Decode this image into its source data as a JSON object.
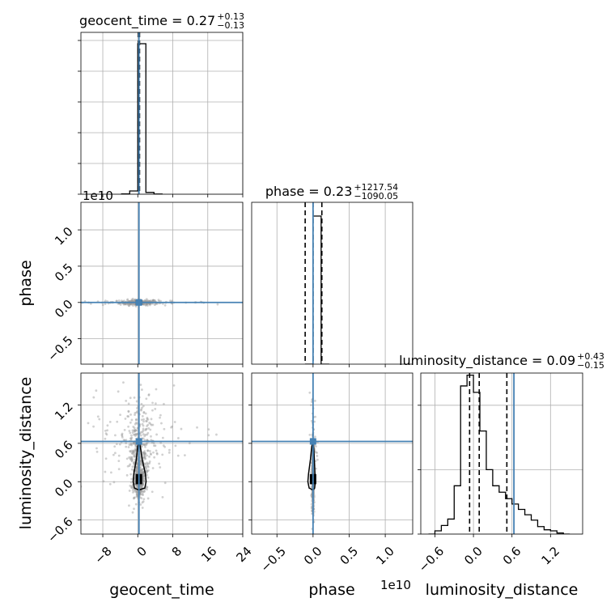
{
  "chart_data": {
    "type": "corner",
    "parameters": [
      "geocent_time",
      "phase",
      "luminosity_distance"
    ],
    "truths": {
      "geocent_time": 0.27,
      "phase": 0.23,
      "luminosity_distance": 0.63
    },
    "ranges": {
      "geocent_time": [
        -13,
        24
      ],
      "phase": [
        -8500000000.0,
        13800000000.0
      ],
      "luminosity_distance": [
        -0.82,
        1.7
      ]
    },
    "ticks": {
      "geocent_time": {
        "values": [
          -8,
          0,
          8,
          16,
          24
        ],
        "labels": [
          "−8",
          "0",
          "8",
          "16",
          "24"
        ]
      },
      "phase": {
        "values": [
          -5000000000.0,
          0,
          5000000000.0,
          10000000000.0
        ],
        "labels": [
          "−0.5",
          "0.0",
          "0.5",
          "1.0"
        ]
      },
      "phase_x": {
        "values": [
          -5000000000.0,
          0,
          5000000000.0,
          10000000000.0
        ],
        "labels": [
          "−0.5",
          "0.0",
          "0.5",
          "1.0"
        ]
      },
      "luminosity_distance": {
        "values": [
          -0.6,
          0,
          0.6,
          1.2
        ],
        "labels": [
          "−0.6",
          "0.0",
          "0.6",
          "1.2"
        ]
      }
    },
    "offset_label": "1e10",
    "titles": [
      {
        "name": "geocent_time",
        "median": "0.27",
        "plus": "+0.13",
        "minus": "−0.13",
        "eq": " = "
      },
      {
        "name": "phase",
        "median": "0.23",
        "plus": "+1217.54",
        "minus": "−1090.05",
        "eq": " = "
      },
      {
        "name": "luminosity_distance",
        "median": "0.09",
        "plus": "+0.43",
        "minus": "−0.15",
        "eq": " = "
      }
    ],
    "quantiles": {
      "geocent_time": [
        0.14,
        0.27,
        0.4
      ],
      "phase": [
        -1090000000.0,
        0.0,
        1220000000.0
      ],
      "luminosity_distance": [
        -0.06,
        0.09,
        0.52
      ]
    },
    "histograms": {
      "geocent_time": {
        "bin_edges": [
          -3.7,
          -1.85,
          0,
          1.85,
          3.7,
          5.55
        ],
        "counts": [
          2,
          20,
          930,
          11,
          1
        ]
      },
      "phase": {
        "bin_edges": [
          -1120000000.0,
          0.0,
          1120000000.0,
          2240000000.0
        ],
        "counts": [
          0,
          860,
          0
        ]
      },
      "luminosity_distance": {
        "bin_edges": [
          -0.7,
          -0.6,
          -0.5,
          -0.4,
          -0.3,
          -0.2,
          -0.1,
          0.0,
          0.1,
          0.2,
          0.3,
          0.4,
          0.5,
          0.6,
          0.7,
          0.8,
          0.9,
          1.0,
          1.1,
          1.2,
          1.3,
          1.4,
          1.5
        ],
        "counts": [
          0,
          3,
          8,
          14,
          45,
          138,
          148,
          132,
          96,
          60,
          45,
          39,
          33,
          28,
          23,
          18,
          13,
          7,
          4,
          3,
          1,
          0
        ]
      }
    },
    "hist_yticks": {
      "geocent_time": [
        0,
        190,
        380,
        570,
        760,
        950
      ],
      "luminosity_distance": [
        0,
        60,
        120
      ]
    },
    "grid": true
  }
}
